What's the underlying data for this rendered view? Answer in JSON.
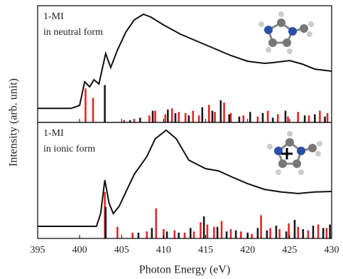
{
  "chart_data": [
    {
      "type": "spectrum",
      "annotation": [
        "1-MI",
        "in neutral form"
      ],
      "ylabel": "Intensity (arb. unit)",
      "xlim": [
        395,
        430
      ],
      "ylim": [
        0,
        1
      ],
      "series": [
        {
          "style": "line",
          "color": "#111111",
          "x": [
            395,
            399,
            400,
            400.6,
            401.2,
            401.7,
            402.3,
            403.1,
            403.7,
            404.5,
            405.5,
            406.5,
            407.6,
            408.5,
            410,
            412,
            414,
            416,
            418,
            420,
            422,
            423,
            425,
            426.5,
            428,
            430
          ],
          "values": [
            0.12,
            0.12,
            0.146,
            0.348,
            0.305,
            0.366,
            0.329,
            0.59,
            0.47,
            0.62,
            0.774,
            0.878,
            0.927,
            0.902,
            0.835,
            0.756,
            0.695,
            0.634,
            0.573,
            0.524,
            0.506,
            0.512,
            0.53,
            0.5,
            0.457,
            0.439
          ]
        },
        {
          "style": "stick",
          "color": "#e3262a",
          "x": [
            400.7,
            401.6,
            405.3,
            406.5,
            408.3,
            409.0,
            410.2,
            411.0,
            411.8,
            412.6,
            413.5,
            414.2,
            415.4,
            416.1,
            417.2,
            418.0,
            419.5,
            421.2,
            422.4,
            423.6,
            424.8,
            426.0,
            427.3,
            428.6,
            429.5
          ],
          "values": [
            0.29,
            0.21,
            0.02,
            0.03,
            0.06,
            0.1,
            0.07,
            0.12,
            0.09,
            0.08,
            0.1,
            0.06,
            0.15,
            0.09,
            0.17,
            0.08,
            0.06,
            0.05,
            0.1,
            0.07,
            0.05,
            0.09,
            0.06,
            0.1,
            0.08
          ]
        },
        {
          "style": "stick",
          "color": "#1a1a1a",
          "x": [
            403.0,
            406.0,
            407.2,
            408.7,
            410.5,
            411.4,
            413.0,
            414.6,
            415.8,
            416.8,
            417.8,
            419.0,
            420.3,
            421.8,
            423.0,
            424.5,
            426.8,
            428.0,
            429.2
          ],
          "values": [
            0.32,
            0.02,
            0.04,
            0.1,
            0.11,
            0.08,
            0.06,
            0.13,
            0.1,
            0.19,
            0.07,
            0.05,
            0.09,
            0.08,
            0.04,
            0.1,
            0.06,
            0.07,
            0.05
          ]
        }
      ]
    },
    {
      "type": "spectrum",
      "annotation": [
        "1-MI",
        "in ionic form"
      ],
      "xlabel": "Photon Energy (eV)",
      "xlim": [
        395,
        430
      ],
      "ylim": [
        0,
        1
      ],
      "xticks": [
        395,
        400,
        405,
        410,
        415,
        420,
        425,
        430
      ],
      "series": [
        {
          "style": "line",
          "color": "#111111",
          "x": [
            395,
            402,
            402.5,
            403,
            403.5,
            404,
            404.7,
            405.5,
            406.5,
            408,
            409,
            410.3,
            411.5,
            413,
            415,
            416.5,
            418,
            420,
            422,
            424,
            426,
            428,
            430
          ],
          "values": [
            0.104,
            0.104,
            0.215,
            0.503,
            0.307,
            0.215,
            0.276,
            0.4,
            0.552,
            0.706,
            0.859,
            0.933,
            0.859,
            0.675,
            0.601,
            0.583,
            0.534,
            0.472,
            0.423,
            0.4,
            0.387,
            0.4,
            0.405
          ]
        },
        {
          "style": "stick",
          "color": "#e3262a",
          "x": [
            403.0,
            404.5,
            406.3,
            408.0,
            409.1,
            410.0,
            411.3,
            412.5,
            413.6,
            414.4,
            415.2,
            416.0,
            416.9,
            418.0,
            419.2,
            420.5,
            421.6,
            422.7,
            423.8,
            424.9,
            426.0,
            427.2,
            428.4,
            429.4
          ],
          "values": [
            0.4,
            0.1,
            0.05,
            0.06,
            0.26,
            0.08,
            0.07,
            0.05,
            0.06,
            0.14,
            0.12,
            0.1,
            0.15,
            0.08,
            0.06,
            0.04,
            0.2,
            0.09,
            0.08,
            0.13,
            0.1,
            0.07,
            0.12,
            0.09
          ]
        },
        {
          "style": "stick",
          "color": "#1a1a1a",
          "x": [
            403.1,
            407.0,
            408.6,
            410.4,
            411.8,
            413.2,
            414.8,
            416.4,
            417.5,
            418.6,
            420.0,
            421.2,
            422.3,
            423.4,
            424.6,
            425.6,
            426.6,
            427.8,
            429.0,
            429.8
          ],
          "values": [
            0.27,
            0.05,
            0.09,
            0.06,
            0.05,
            0.09,
            0.19,
            0.1,
            0.06,
            0.07,
            0.05,
            0.09,
            0.07,
            0.11,
            0.06,
            0.16,
            0.08,
            0.11,
            0.09,
            0.12
          ]
        }
      ]
    }
  ]
}
